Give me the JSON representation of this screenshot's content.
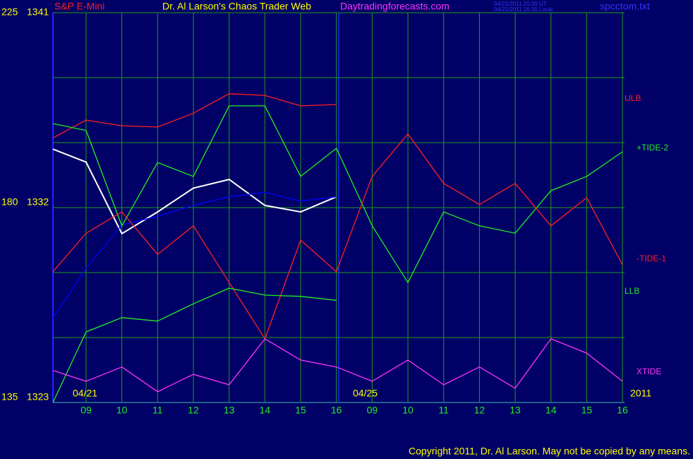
{
  "chart_data": {
    "type": "line",
    "symbol": "S&P E-Mini",
    "title": "Dr. Al Larson's Chaos Trader Web",
    "website": "Daytradingforecasts.com",
    "timestamps": [
      "04/21/2011 20:30 UT",
      "04/21/2011 16:30 Local"
    ],
    "file": "spcctom.txt",
    "dates": [
      "04/21",
      "04/25",
      "2011"
    ],
    "copyright": "Copyright 2011, Dr. Al Larson. May not be copied by any means.",
    "categories": [
      null,
      "09",
      "10",
      "11",
      "12",
      "13",
      "14",
      "15",
      "16",
      "09",
      "10",
      "11",
      "12",
      "13",
      "14",
      "15",
      "16"
    ],
    "ylim": [
      1323,
      1341
    ],
    "yticks": [
      1323,
      1332,
      1341
    ],
    "ygrid": [
      1323,
      1326,
      1329,
      1332,
      1335,
      1338,
      1341
    ],
    "y2lim": [
      135,
      225
    ],
    "y2ticks": [
      135,
      180,
      225
    ],
    "grid": true,
    "series": [
      {
        "color": "#ffffff",
        "values": [
          1334.7,
          1334.1,
          1330.8,
          1331.8,
          1332.9,
          1333.3,
          1332.1,
          1331.8,
          1332.5,
          null,
          null,
          null,
          null,
          null,
          null,
          null,
          null
        ]
      },
      {
        "color": "#0000ff",
        "values": [
          1326.9,
          1329.2,
          1331.2,
          1331.6,
          1332.1,
          1332.5,
          1332.7,
          1332.3,
          1332.5,
          null,
          null,
          null,
          null,
          null,
          null,
          null,
          null
        ]
      },
      {
        "name": "ULB",
        "color": "#ff2020",
        "axis": "y2",
        "values": [
          196.1,
          200.2,
          198.9,
          198.6,
          201.8,
          206.3,
          205.9,
          203.5,
          203.8,
          null,
          null,
          null,
          null,
          null,
          null,
          null,
          null
        ]
      },
      {
        "name": "+TIDE-2",
        "color": "#22ee22",
        "axis": "y2",
        "values": [
          199.4,
          197.8,
          175.8,
          190.4,
          187.2,
          203.5,
          203.5,
          187.2,
          193.7,
          175.8,
          162.7,
          179.0,
          175.8,
          174.1,
          183.9,
          187.2,
          192.9
        ]
      },
      {
        "name": "-TIDE-1",
        "color": "#ff2020",
        "axis": "y2",
        "values": [
          165.2,
          174.1,
          179.0,
          169.2,
          175.8,
          162.7,
          149.7,
          172.5,
          165.2,
          187.2,
          197.0,
          185.6,
          180.7,
          185.6,
          175.8,
          182.3,
          166.8
        ]
      },
      {
        "name": "LLB",
        "color": "#22ee22",
        "axis": "y2",
        "values": [
          135,
          151.3,
          154.6,
          153.8,
          157.8,
          161.4,
          159.8,
          159.5,
          158.6,
          null,
          null,
          null,
          null,
          null,
          null,
          null,
          null
        ]
      },
      {
        "name": "XTIDE",
        "color": "#ff33ff",
        "axis": "y2",
        "values": [
          142.4,
          139.9,
          143.2,
          137.5,
          141.5,
          139.1,
          149.7,
          144.8,
          143.2,
          139.9,
          144.8,
          139.1,
          143.2,
          138.3,
          149.7,
          146.4,
          139.9
        ]
      }
    ]
  }
}
